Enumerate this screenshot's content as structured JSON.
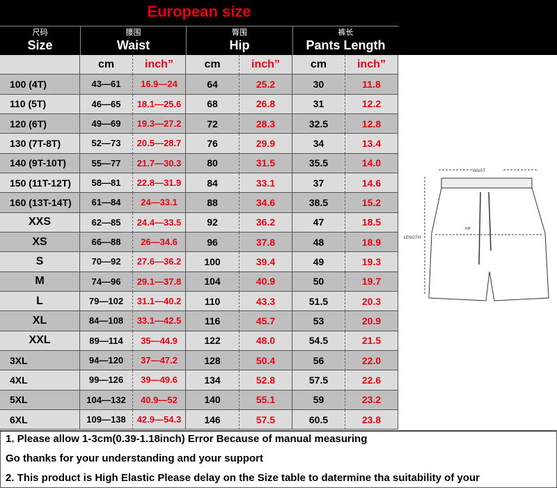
{
  "title": "European size",
  "headers": [
    {
      "zh": "尺码",
      "en": "Size"
    },
    {
      "zh": "腰围",
      "en": "Waist"
    },
    {
      "zh": "臀围",
      "en": "Hip"
    },
    {
      "zh": "裤长",
      "en": "Pants Length"
    }
  ],
  "units": [
    "",
    "cm",
    "inch”",
    "cm",
    "inch”",
    "cm",
    "inch”"
  ],
  "rows": [
    [
      "100    (4T)",
      "43—61",
      "16.9—24",
      "64",
      "25.2",
      "30",
      "11.8"
    ],
    [
      "110    (5T)",
      "46—65",
      "18.1—25.6",
      "68",
      "26.8",
      "31",
      "12.2"
    ],
    [
      "120    (6T)",
      "49—69",
      "19.3—27.2",
      "72",
      "28.3",
      "32.5",
      "12.8"
    ],
    [
      "130  (7T-8T)",
      "52—73",
      "20.5—28.7",
      "76",
      "29.9",
      "34",
      "13.4"
    ],
    [
      "140  (9T-10T)",
      "55—77",
      "21.7—30.3",
      "80",
      "31.5",
      "35.5",
      "14.0"
    ],
    [
      "150  (11T-12T)",
      "58—81",
      "22.8—31.9",
      "84",
      "33.1",
      "37",
      "14.6"
    ],
    [
      "160  (13T-14T)",
      "61—84",
      "24—33.1",
      "88",
      "34.6",
      "38.5",
      "15.2"
    ],
    [
      "XXS",
      "62—85",
      "24.4—33.5",
      "92",
      "36.2",
      "47",
      "18.5"
    ],
    [
      "XS",
      "66—88",
      "26—34.6",
      "96",
      "37.8",
      "48",
      "18.9"
    ],
    [
      "S",
      "70—92",
      "27.6—36.2",
      "100",
      "39.4",
      "49",
      "19.3"
    ],
    [
      "M",
      "74—96",
      "29.1—37.8",
      "104",
      "40.9",
      "50",
      "19.7"
    ],
    [
      "L",
      "79—102",
      "31.1—40.2",
      "110",
      "43.3",
      "51.5",
      "20.3"
    ],
    [
      "XL",
      "84—108",
      "33.1—42.5",
      "116",
      "45.7",
      "53",
      "20.9"
    ],
    [
      "XXL",
      "89—114",
      "35—44.9",
      "122",
      "48.0",
      "54.5",
      "21.5"
    ],
    [
      "3XL",
      "94—120",
      "37—47.2",
      "128",
      "50.4",
      "56",
      "22.0"
    ],
    [
      "4XL",
      "99—126",
      "39—49.6",
      "134",
      "52.8",
      "57.5",
      "22.6"
    ],
    [
      "5XL",
      "104—132",
      "40.9—52",
      "140",
      "55.1",
      "59",
      "23.2"
    ],
    [
      "6XL",
      "109—138",
      "42.9—54.3",
      "146",
      "57.5",
      "60.5",
      "23.8"
    ]
  ],
  "diagram": {
    "waist": "WAIST",
    "hip": "HIP",
    "length": "LENGTH"
  },
  "notes": [
    "1. Please allow 1-3cm(0.39-1.18inch) Error Because of manual measuring",
    "Go thanks for your understanding and your support",
    "2. This product is High Elastic  Please delay on the Size table to datermine tha suitability of your"
  ],
  "colors": {
    "header_bg": "#000000",
    "accent_red": "#e60012",
    "row_light": "#dcdcdc",
    "row_dark": "#bfbfbf"
  }
}
